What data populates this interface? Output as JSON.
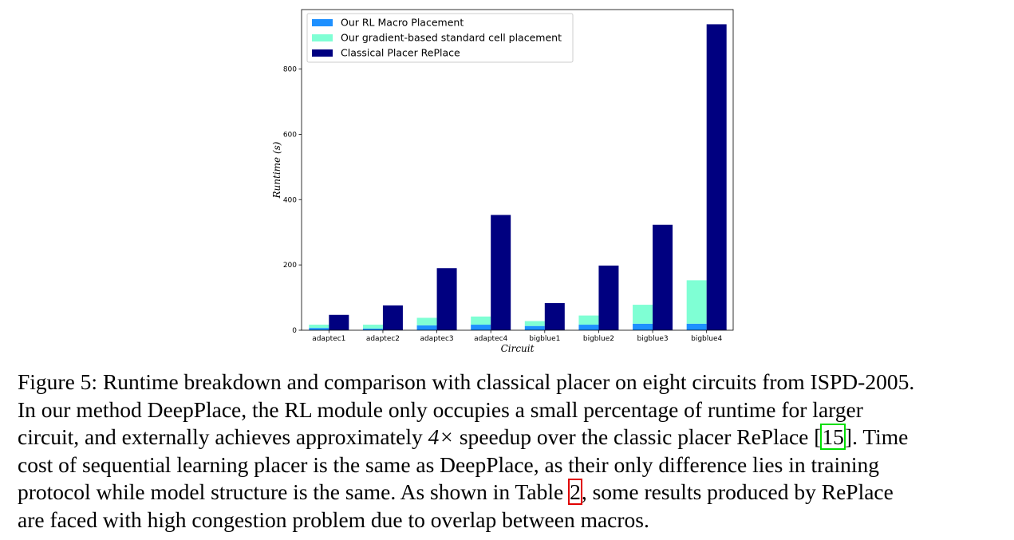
{
  "chart_data": {
    "type": "bar",
    "categories": [
      "adaptec1",
      "adaptec2",
      "adaptec3",
      "adaptec4",
      "bigblue1",
      "bigblue2",
      "bigblue3",
      "bigblue4"
    ],
    "series": [
      {
        "name": "Our RL Macro Placement",
        "values": [
          7,
          5,
          15,
          17,
          13,
          17,
          20,
          20
        ],
        "color": "#1e90ff",
        "stack": "ours"
      },
      {
        "name": "Our gradient-based standard cell placement",
        "values": [
          10,
          12,
          23,
          25,
          15,
          28,
          58,
          133
        ],
        "color": "#7fffd4",
        "stack": "ours"
      },
      {
        "name": "Classical Placer RePlace",
        "values": [
          47,
          76,
          190,
          353,
          83,
          198,
          323,
          937
        ],
        "color": "#000080",
        "stack": "replace"
      }
    ],
    "xlabel": "Circuit",
    "ylabel": "Runtime (s)",
    "ylim": [
      0,
      982
    ],
    "yticks": [
      0,
      200,
      400,
      600,
      800
    ],
    "legend_position": "upper-left",
    "grid": false
  },
  "caption": {
    "line1": "Figure 5: Runtime breakdown and comparison with classical placer on eight circuits from ISPD-2005.",
    "line2": "In our method DeepPlace, the RL module only occupies a small percentage of runtime for larger",
    "line3_a": "circuit, and externally achieves approximately ",
    "line3_math": "4×",
    "line3_b": " speedup over the classic placer RePlace [",
    "ref_15": "15",
    "line3_c": "]. Time",
    "line4": "cost of sequential learning placer is the same as DeepPlace, as their only difference lies in training",
    "line5_a": "protocol while model structure is the same. As shown in Table ",
    "ref_2": "2",
    "line5_b": ", some results produced by RePlace",
    "line6": "are faced with high congestion problem due to overlap between macros."
  }
}
